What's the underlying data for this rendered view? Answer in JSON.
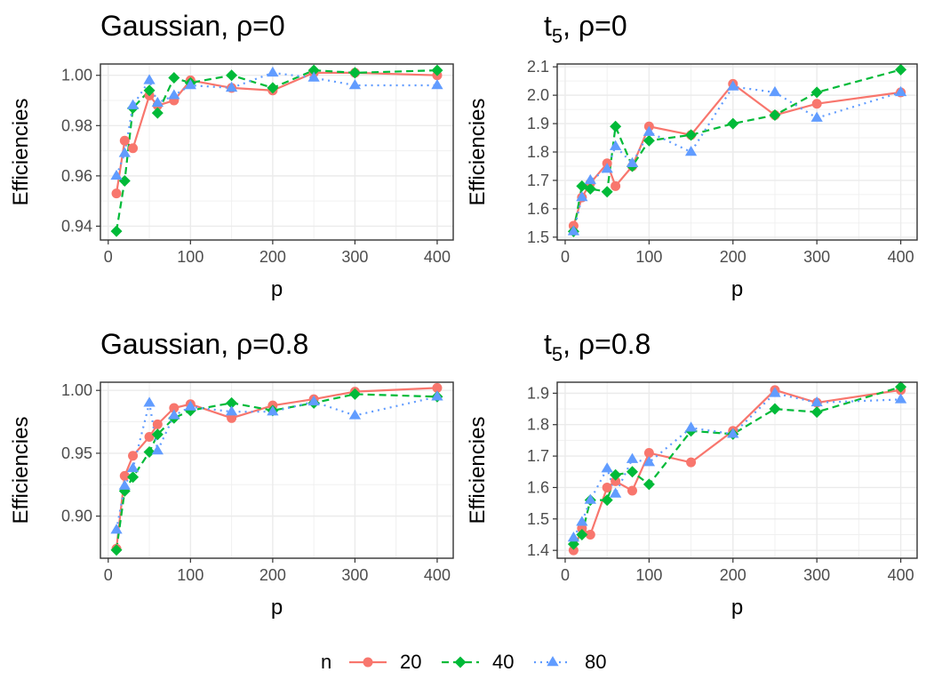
{
  "chart_data": [
    {
      "type": "line",
      "title": "Gaussian,  ρ=0",
      "xlabel": "p",
      "ylabel": "Efficiencies",
      "xlim": [
        -9.5,
        419.5
      ],
      "ylim": [
        0.9345,
        1.0045
      ],
      "xticks": [
        0,
        100,
        200,
        300,
        400
      ],
      "yticks": [
        0.94,
        0.96,
        0.98,
        1.0
      ],
      "ytick_labels": [
        "0.94",
        "0.96",
        "0.98",
        "1.00"
      ],
      "x": [
        10,
        20,
        30,
        50,
        60,
        80,
        100,
        150,
        200,
        250,
        300,
        400
      ],
      "series": [
        {
          "name": "20",
          "values": [
            0.953,
            0.974,
            0.971,
            0.992,
            0.988,
            0.99,
            0.998,
            0.995,
            0.994,
            1.001,
            1.001,
            1.0
          ]
        },
        {
          "name": "40",
          "values": [
            0.938,
            0.958,
            0.987,
            0.994,
            0.985,
            0.999,
            0.997,
            1.0,
            0.995,
            1.002,
            1.001,
            1.002
          ]
        },
        {
          "name": "80",
          "values": [
            0.96,
            0.969,
            0.988,
            0.998,
            0.989,
            0.992,
            0.996,
            0.995,
            1.001,
            0.999,
            0.996,
            0.996
          ]
        }
      ]
    },
    {
      "type": "line",
      "title_base": "t",
      "title_sub": "5",
      "title_rest": ",  ρ=0",
      "xlabel": "p",
      "ylabel": "Efficiencies",
      "xlim": [
        -9.5,
        419.5
      ],
      "ylim": [
        1.49,
        2.11
      ],
      "xticks": [
        0,
        100,
        200,
        300,
        400
      ],
      "yticks": [
        1.5,
        1.6,
        1.7,
        1.8,
        1.9,
        2.0,
        2.1
      ],
      "ytick_labels": [
        "1.5",
        "1.6",
        "1.7",
        "1.8",
        "1.9",
        "2.0",
        "2.1"
      ],
      "x": [
        10,
        20,
        30,
        50,
        60,
        80,
        100,
        150,
        200,
        250,
        300,
        400
      ],
      "series": [
        {
          "name": "20",
          "values": [
            1.54,
            1.64,
            1.69,
            1.76,
            1.68,
            1.75,
            1.89,
            1.86,
            2.04,
            1.93,
            1.97,
            2.01
          ]
        },
        {
          "name": "40",
          "values": [
            1.52,
            1.68,
            1.67,
            1.66,
            1.89,
            1.75,
            1.84,
            1.86,
            1.9,
            1.93,
            2.01,
            2.09
          ]
        },
        {
          "name": "80",
          "values": [
            1.52,
            1.64,
            1.7,
            1.74,
            1.82,
            1.76,
            1.87,
            1.8,
            2.03,
            2.01,
            1.92,
            2.01
          ]
        }
      ]
    },
    {
      "type": "line",
      "title": "Gaussian,  ρ=0.8",
      "xlabel": "p",
      "ylabel": "Efficiencies",
      "xlim": [
        -9.5,
        419.5
      ],
      "ylim": [
        0.8665,
        1.0065
      ],
      "xticks": [
        0,
        100,
        200,
        300,
        400
      ],
      "yticks": [
        0.9,
        0.95,
        1.0
      ],
      "ytick_labels": [
        "0.90",
        "0.95",
        "1.00"
      ],
      "x": [
        10,
        20,
        30,
        50,
        60,
        80,
        100,
        150,
        200,
        250,
        300,
        400
      ],
      "series": [
        {
          "name": "20",
          "values": [
            0.874,
            0.932,
            0.948,
            0.963,
            0.973,
            0.986,
            0.989,
            0.978,
            0.988,
            0.993,
            0.999,
            1.002
          ]
        },
        {
          "name": "40",
          "values": [
            0.873,
            0.92,
            0.931,
            0.951,
            0.965,
            0.978,
            0.984,
            0.99,
            0.984,
            0.99,
            0.997,
            0.995
          ]
        },
        {
          "name": "80",
          "values": [
            0.889,
            0.924,
            0.938,
            0.99,
            0.952,
            0.98,
            0.987,
            0.983,
            0.983,
            0.991,
            0.98,
            0.995
          ]
        }
      ]
    },
    {
      "type": "line",
      "title_base": "t",
      "title_sub": "5",
      "title_rest": ",  ρ=0.8",
      "xlabel": "p",
      "ylabel": "Efficiencies",
      "xlim": [
        -9.5,
        419.5
      ],
      "ylim": [
        1.375,
        1.935
      ],
      "xticks": [
        0,
        100,
        200,
        300,
        400
      ],
      "yticks": [
        1.4,
        1.5,
        1.6,
        1.7,
        1.8,
        1.9
      ],
      "ytick_labels": [
        "1.4",
        "1.5",
        "1.6",
        "1.7",
        "1.8",
        "1.9"
      ],
      "x": [
        10,
        20,
        30,
        50,
        60,
        80,
        100,
        150,
        200,
        250,
        300,
        400
      ],
      "series": [
        {
          "name": "20",
          "values": [
            1.4,
            1.47,
            1.45,
            1.6,
            1.62,
            1.59,
            1.71,
            1.68,
            1.78,
            1.91,
            1.87,
            1.91
          ]
        },
        {
          "name": "40",
          "values": [
            1.42,
            1.45,
            1.56,
            1.56,
            1.64,
            1.65,
            1.61,
            1.78,
            1.77,
            1.85,
            1.84,
            1.92
          ]
        },
        {
          "name": "80",
          "values": [
            1.44,
            1.49,
            1.56,
            1.66,
            1.58,
            1.69,
            1.68,
            1.79,
            1.77,
            1.9,
            1.87,
            1.88
          ]
        }
      ]
    }
  ],
  "legend": {
    "title": "n",
    "position": "bottom",
    "items": [
      {
        "label": "20",
        "color": "#F8766D",
        "marker": "circle",
        "linestyle": "solid"
      },
      {
        "label": "40",
        "color": "#00BA38",
        "marker": "diamond",
        "linestyle": "dashed"
      },
      {
        "label": "80",
        "color": "#619CFF",
        "marker": "triangle",
        "linestyle": "dotted"
      }
    ]
  }
}
